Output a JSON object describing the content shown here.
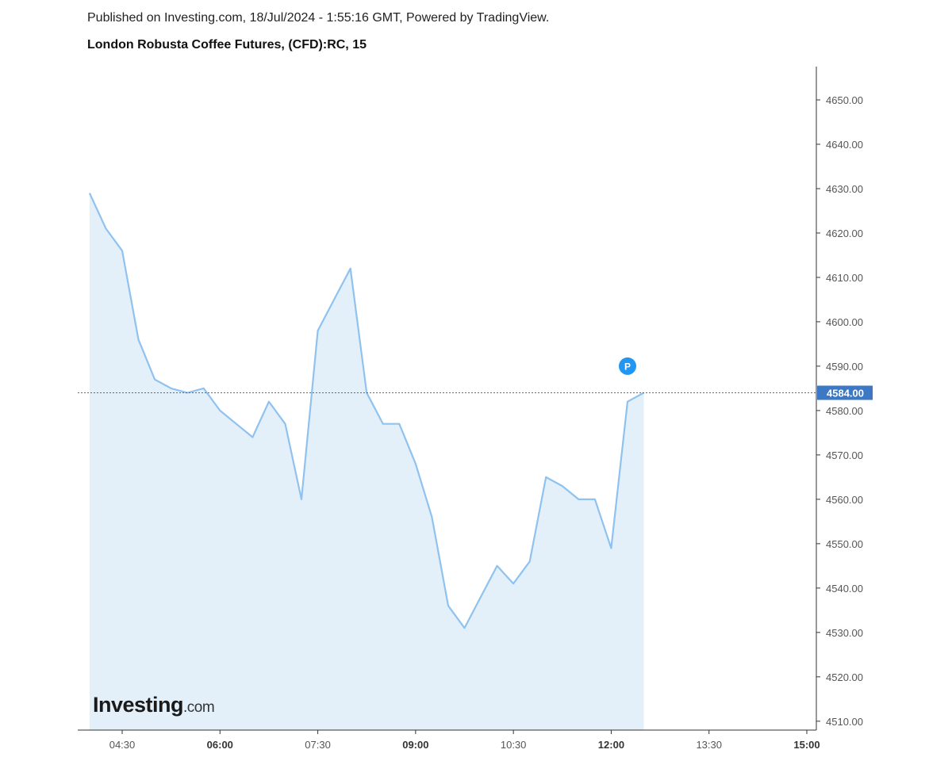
{
  "header": {
    "published": "Published on Investing.com, 18/Jul/2024 - 1:55:16 GMT, Powered by TradingView.",
    "title": "London Robusta Coffee Futures, (CFD):RC, 15"
  },
  "watermark": {
    "brand": "Investing",
    "suffix": ".com"
  },
  "marker": {
    "label": "P",
    "color": "#2196f3"
  },
  "colors": {
    "line": "#90c2ef",
    "fill": "#e3f0fa",
    "price_line": "#3a6fb0",
    "price_badge": "#3d78c4",
    "axis": "#333333"
  },
  "chart_data": {
    "type": "area",
    "x_unit": "time (HH:MM)",
    "x_tick_labels": [
      {
        "time": "04:30",
        "minutes": 270,
        "bold": false
      },
      {
        "time": "06:00",
        "minutes": 360,
        "bold": true
      },
      {
        "time": "07:30",
        "minutes": 450,
        "bold": false
      },
      {
        "time": "09:00",
        "minutes": 540,
        "bold": true
      },
      {
        "time": "10:30",
        "minutes": 630,
        "bold": false
      },
      {
        "time": "12:00",
        "minutes": 720,
        "bold": true
      },
      {
        "time": "13:30",
        "minutes": 810,
        "bold": false
      },
      {
        "time": "15:00",
        "minutes": 900,
        "bold": true
      }
    ],
    "x_range_minutes": [
      230,
      905
    ],
    "y_ticks": [
      4510,
      4520,
      4530,
      4540,
      4550,
      4560,
      4570,
      4580,
      4590,
      4600,
      4610,
      4620,
      4630,
      4640,
      4650
    ],
    "y_tick_labels": [
      "4510.00",
      "4520.00",
      "4530.00",
      "4540.00",
      "4550.00",
      "4560.00",
      "4570.00",
      "4580.00",
      "4590.00",
      "4600.00",
      "4610.00",
      "4620.00",
      "4630.00",
      "4640.00",
      "4650.00"
    ],
    "ylim": [
      4508,
      4657.5
    ],
    "current_price": 4584,
    "current_price_label": "4584.00",
    "marker_time_minutes": 735,
    "marker_value": 4590,
    "series": [
      {
        "interval_minutes": 15,
        "start_minutes": 240,
        "values": [
          4629,
          4621,
          4616,
          4596,
          4587,
          4585,
          4584,
          4585,
          4580,
          4577,
          4574,
          4582,
          4577,
          4560,
          4598,
          4605,
          4612,
          4584,
          4577,
          4577,
          4568,
          4556,
          4536,
          4531,
          4538,
          4545,
          4541,
          4546,
          4565,
          4563,
          4560,
          4560,
          4549,
          4582,
          4584
        ]
      }
    ]
  }
}
